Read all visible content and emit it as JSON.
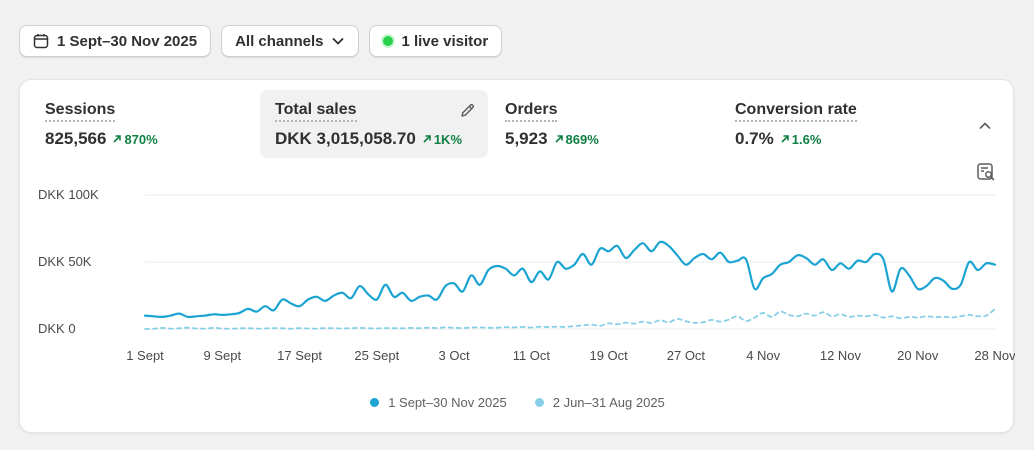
{
  "filters": {
    "date_range": "1 Sept–30 Nov 2025",
    "channels": "All channels",
    "live": "1 live visitor"
  },
  "metrics": [
    {
      "label": "Sessions",
      "value": "825,566",
      "change": "870%"
    },
    {
      "label": "Total sales",
      "value": "DKK 3,015,058.70",
      "change": "1K%"
    },
    {
      "label": "Orders",
      "value": "5,923",
      "change": "869%"
    },
    {
      "label": "Conversion rate",
      "value": "0.7%",
      "change": "1.6%"
    }
  ],
  "colors": {
    "primary_series": "#1ba3d2",
    "comparison_series": "#86cfe6",
    "positive": "#108043",
    "live": "#29d04a"
  },
  "icons": {
    "date": "calendar-icon",
    "channels": "chevron-down-icon",
    "edit": "pencil-icon",
    "collapse": "chevron-up-icon",
    "table": "table-search-icon"
  },
  "chart_data": {
    "type": "line",
    "title": "",
    "xlabel": "",
    "ylabel": "",
    "y_tick_labels": [
      "DKK 0",
      "DKK 50K",
      "DKK 100K"
    ],
    "y_ticks": [
      0,
      50000,
      100000
    ],
    "ylim": [
      0,
      100000
    ],
    "x_tick_labels": [
      "1 Sept",
      "9 Sept",
      "17 Sept",
      "25 Sept",
      "3 Oct",
      "11 Oct",
      "19 Oct",
      "27 Oct",
      "4 Nov",
      "12 Nov",
      "20 Nov",
      "28 Nov"
    ],
    "grid": true,
    "legend": "bottom-center",
    "series": [
      {
        "name": "1 Sept–30 Nov 2025",
        "style": "solid",
        "values": [
          10000,
          9500,
          9000,
          10000,
          11500,
          9000,
          9500,
          10000,
          11000,
          10500,
          11000,
          12000,
          15000,
          13000,
          17000,
          14000,
          22000,
          19000,
          17000,
          22000,
          24000,
          21000,
          25000,
          27000,
          23000,
          32000,
          26000,
          22000,
          33000,
          24000,
          27000,
          21000,
          24000,
          25000,
          22000,
          32000,
          34000,
          28000,
          40000,
          33000,
          44000,
          47000,
          45000,
          40000,
          45000,
          35000,
          43000,
          37000,
          50000,
          45000,
          48000,
          56000,
          48000,
          60000,
          58000,
          62000,
          53000,
          59000,
          64000,
          58000,
          65000,
          62000,
          55000,
          48000,
          53000,
          56000,
          52000,
          57000,
          50000,
          51000,
          52000,
          30000,
          38000,
          41000,
          48000,
          50000,
          55000,
          53000,
          48000,
          52000,
          44000,
          49000,
          45000,
          51000,
          50000,
          56000,
          52000,
          28000,
          45000,
          40000,
          30000,
          32000,
          38000,
          36000,
          30000,
          33000,
          50000,
          44000,
          49000,
          48000
        ]
      },
      {
        "name": "2 Jun–31 Aug 2025",
        "style": "dashed",
        "values": [
          0,
          200,
          800,
          300,
          500,
          1000,
          400,
          300,
          800,
          400,
          200,
          500,
          600,
          300,
          400,
          700,
          500,
          200,
          600,
          400,
          300,
          700,
          500,
          400,
          600,
          800,
          500,
          400,
          700,
          600,
          500,
          800,
          600,
          1000,
          700,
          1300,
          900,
          700,
          1100,
          1200,
          900,
          1000,
          1400,
          1200,
          1500,
          1100,
          1700,
          1400,
          1800,
          1500,
          2200,
          2700,
          3300,
          2400,
          4200,
          3500,
          4700,
          4000,
          5500,
          4500,
          6500,
          5000,
          7500,
          5800,
          4600,
          5000,
          6800,
          5500,
          7000,
          9500,
          6000,
          8500,
          12000,
          9000,
          13000,
          10500,
          9500,
          11500,
          10000,
          12500,
          9500,
          11000,
          9000,
          10000,
          9500,
          10500,
          8500,
          9500,
          8000,
          9000,
          8500,
          9500,
          8800,
          9200,
          8600,
          9500,
          10500,
          9500,
          10000,
          15000
        ]
      }
    ]
  }
}
